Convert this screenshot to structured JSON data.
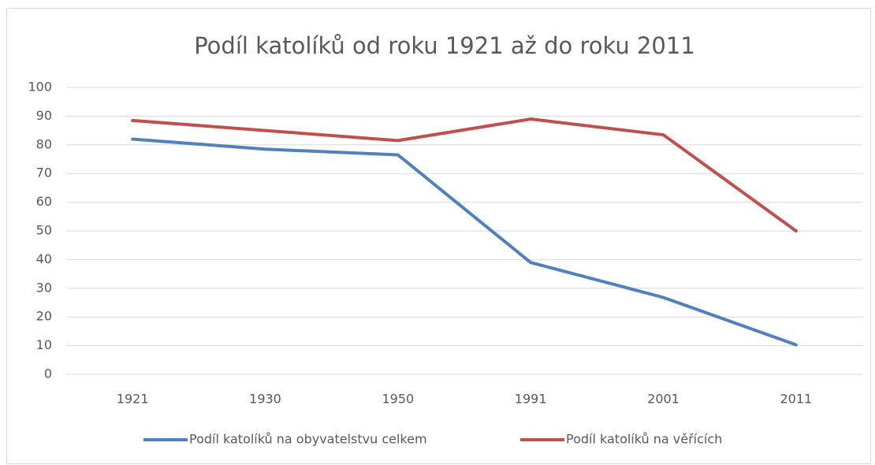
{
  "chart_data": {
    "type": "line",
    "title": "Podíl katolíků od roku 1921 až do roku 2011",
    "categories": [
      "1921",
      "1930",
      "1950",
      "1991",
      "2001",
      "2011"
    ],
    "series": [
      {
        "name": "Podíl katolíků na obyvatelstvu celkem",
        "color": "#4f81bd",
        "values": [
          82,
          78.5,
          76.5,
          39,
          26.8,
          10.3
        ]
      },
      {
        "name": "Podíl katolíků na věřících",
        "color": "#c0504d",
        "values": [
          88.5,
          85,
          81.5,
          89,
          83.5,
          50
        ]
      }
    ],
    "ylim": [
      0,
      100
    ],
    "yticks": [
      0,
      10,
      20,
      30,
      40,
      50,
      60,
      70,
      80,
      90,
      100
    ],
    "grid": true,
    "legend": "bottom"
  }
}
